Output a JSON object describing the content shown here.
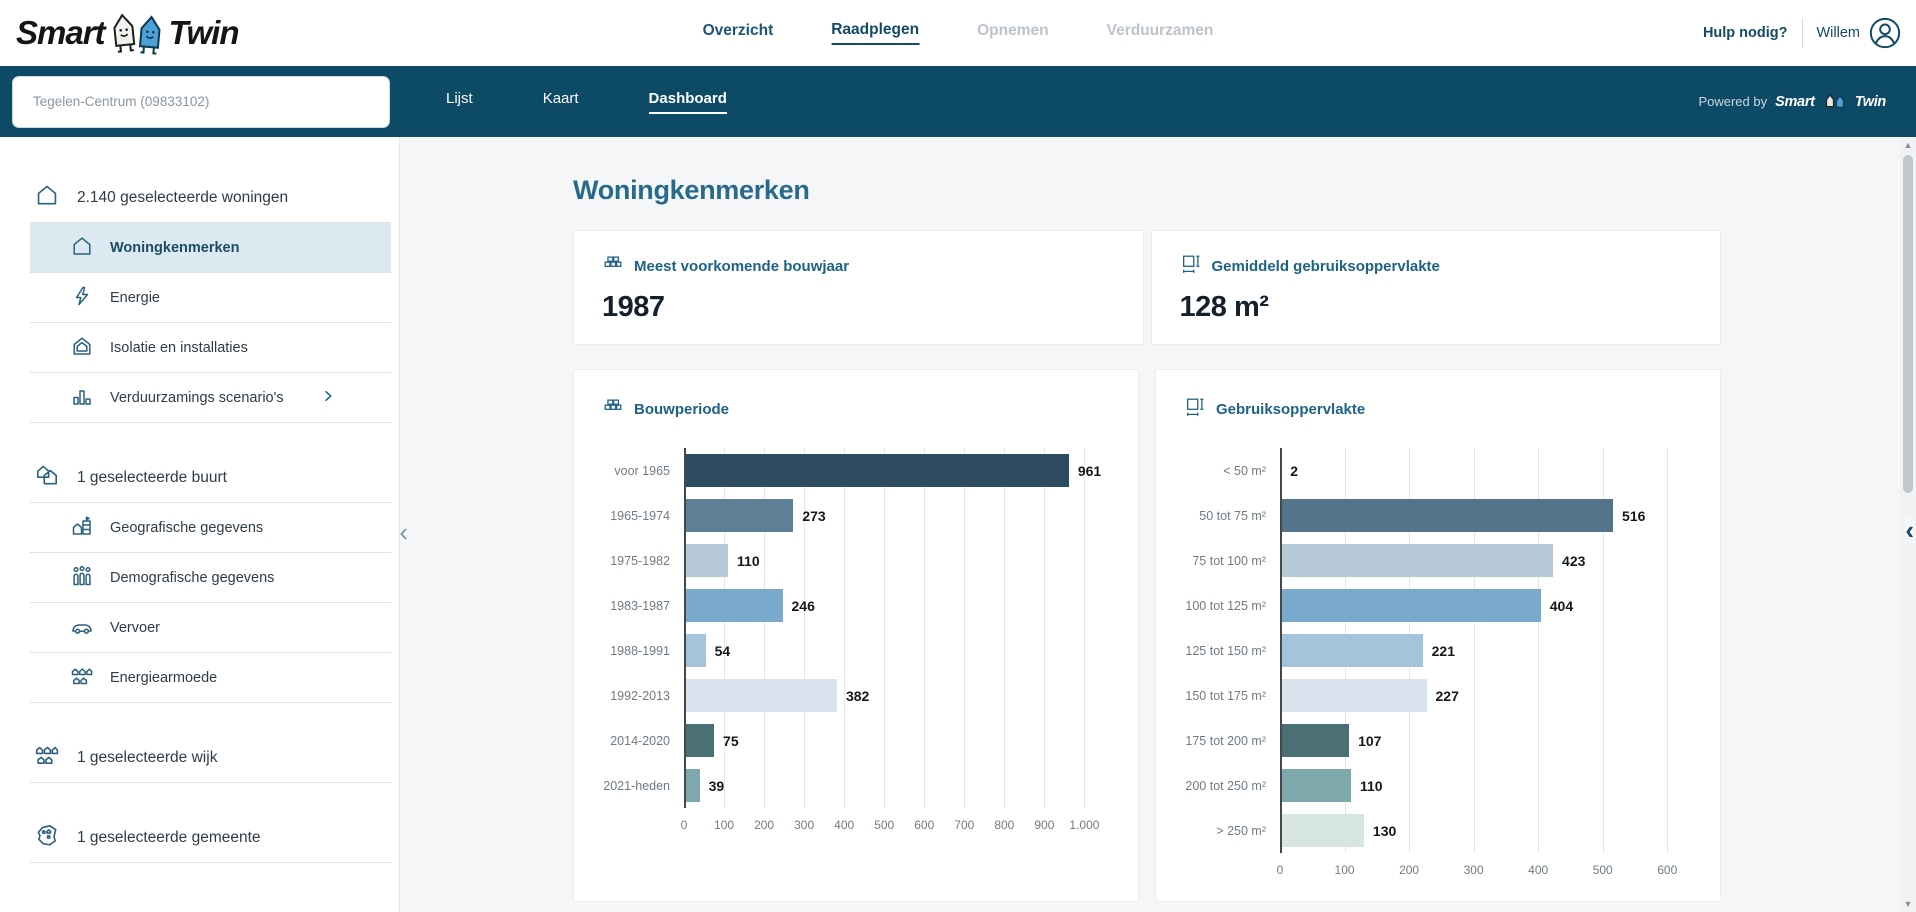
{
  "header": {
    "logo": {
      "part1": "Smart",
      "part2": "Twin"
    },
    "nav": [
      {
        "label": "Overzicht",
        "state": "normal"
      },
      {
        "label": "Raadplegen",
        "state": "active"
      },
      {
        "label": "Opnemen",
        "state": "disabled"
      },
      {
        "label": "Verduurzamen",
        "state": "disabled"
      }
    ],
    "help_label": "Hulp nodig?",
    "user_name": "Willem"
  },
  "toolbar": {
    "search_value": "Tegelen-Centrum (09833102)",
    "tabs": [
      {
        "label": "Lijst",
        "active": false
      },
      {
        "label": "Kaart",
        "active": false
      },
      {
        "label": "Dashboard",
        "active": true
      }
    ],
    "powered_by": "Powered by",
    "powered_logo1": "Smart",
    "powered_logo2": "Twin"
  },
  "sidebar": {
    "groups": [
      {
        "label": "2.140 geselecteerde woningen",
        "items": [
          {
            "label": "Woningkenmerken",
            "selected": true
          },
          {
            "label": "Energie"
          },
          {
            "label": "Isolatie en installaties"
          },
          {
            "label": "Verduurzamings scenario's",
            "chevron": true
          }
        ]
      },
      {
        "label": "1 geselecteerde buurt",
        "items": [
          {
            "label": "Geografische gegevens"
          },
          {
            "label": "Demografische gegevens"
          },
          {
            "label": "Vervoer"
          },
          {
            "label": "Energiearmoede"
          }
        ]
      },
      {
        "label": "1 geselecteerde wijk",
        "items": []
      },
      {
        "label": "1 geselecteerde gemeente",
        "items": []
      }
    ]
  },
  "main": {
    "title": "Woningkenmerken",
    "stats": [
      {
        "label": "Meest voorkomende bouwjaar",
        "value": "1987",
        "icon": "bricks-icon"
      },
      {
        "label": "Gemiddeld gebruiksoppervlakte",
        "value": "128 m²",
        "icon": "area-icon"
      }
    ]
  },
  "chart_data": [
    {
      "type": "bar",
      "orientation": "horizontal",
      "title": "Bouwperiode",
      "icon": "bricks-icon",
      "categories": [
        "voor 1965",
        "1965-1974",
        "1975-1982",
        "1983-1987",
        "1988-1991",
        "1992-2013",
        "2014-2020",
        "2021-heden"
      ],
      "values": [
        961,
        273,
        110,
        246,
        54,
        382,
        75,
        39
      ],
      "bar_colors": [
        "#2d4b61",
        "#5d8096",
        "#b5c9d6",
        "#79aacd",
        "#a3c4da",
        "#d9e3ed",
        "#4a7076",
        "#7da9ac"
      ],
      "xlabel": "",
      "ylabel": "",
      "xlim": [
        0,
        1000
      ],
      "xticks": [
        "0",
        "100",
        "200",
        "300",
        "400",
        "500",
        "600",
        "700",
        "800",
        "900",
        "1.000"
      ],
      "grid": true,
      "legend": false,
      "value_labels": true
    },
    {
      "type": "bar",
      "orientation": "horizontal",
      "title": "Gebruiksoppervlakte",
      "icon": "area-icon",
      "categories": [
        "< 50 m²",
        "50 tot 75 m²",
        "75 tot 100 m²",
        "100 tot 125 m²",
        "125 tot 150 m²",
        "150 tot 175 m²",
        "175 tot 200 m²",
        "200 tot 250 m²",
        "> 250 m²"
      ],
      "values": [
        2,
        516,
        423,
        404,
        221,
        227,
        107,
        110,
        130
      ],
      "bar_colors": [
        "#2d4b61",
        "#54748c",
        "#b5c9d6",
        "#79aacd",
        "#a3c4da",
        "#d9e3ed",
        "#4a7076",
        "#7da9ac",
        "#d7e6e2"
      ],
      "xlabel": "",
      "ylabel": "",
      "xlim": [
        0,
        600
      ],
      "xticks": [
        "0",
        "100",
        "200",
        "300",
        "400",
        "500",
        "600"
      ],
      "grid": true,
      "legend": false,
      "value_labels": true
    }
  ],
  "colors": {
    "teal_bar": "#0d4a66",
    "accent_blue": "#1d6287",
    "nav_navy": "#134a66",
    "selected_row_bg": "#dde9f1",
    "page_bg": "#f5f6f8"
  }
}
